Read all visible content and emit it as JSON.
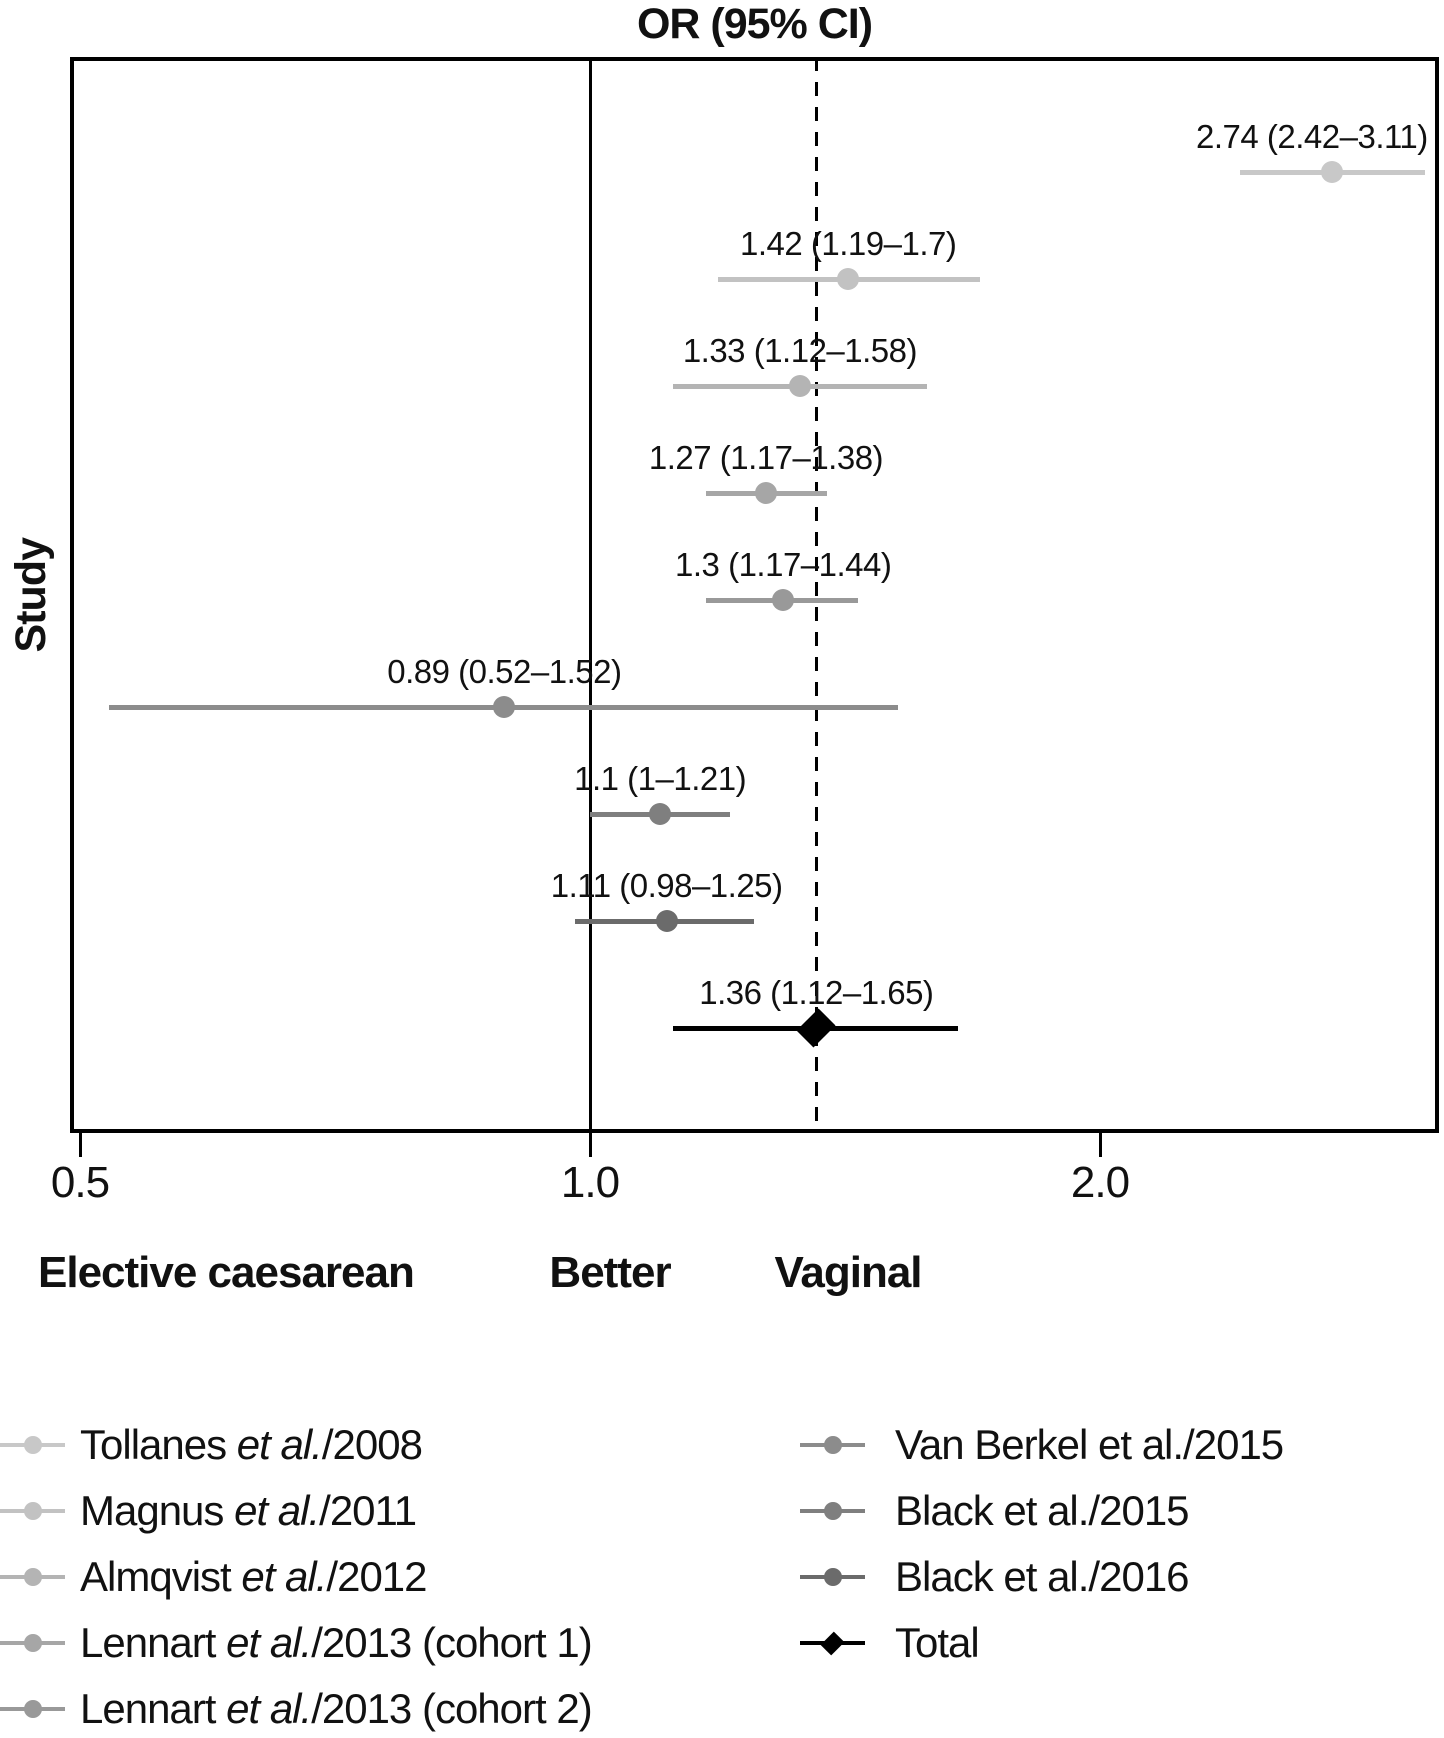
{
  "title": "OR (95% CI)",
  "ylabel": "Study",
  "axis_caption": {
    "left": "Elective caesarean",
    "center": "Better",
    "right": "Vaginal"
  },
  "chart_data": {
    "type": "forest-plot (scatter with CI error bars)",
    "x_scale": "log",
    "xlim": [
      0.49,
      3.2
    ],
    "x_ticks": [
      {
        "value": 0.5,
        "label": "0.5"
      },
      {
        "value": 1.0,
        "label": "1.0"
      },
      {
        "value": 2.0,
        "label": "2.0"
      }
    ],
    "solid_reference_value": 1.0,
    "dashed_reference_value": 1.36,
    "studies": [
      {
        "name": "Tollanes et al./2008",
        "or": 2.74,
        "ci_low": 2.42,
        "ci_high": 3.11,
        "label": "2.74 (2.42–3.11)",
        "color": "#c8c8c8",
        "marker": "circle"
      },
      {
        "name": "Magnus et al./2011",
        "or": 1.42,
        "ci_low": 1.19,
        "ci_high": 1.7,
        "label": "1.42 (1.19–1.7)",
        "color": "#c2c2c2",
        "marker": "circle"
      },
      {
        "name": "Almqvist et al./2012",
        "or": 1.33,
        "ci_low": 1.12,
        "ci_high": 1.58,
        "label": "1.33 (1.12–1.58)",
        "color": "#b4b4b4",
        "marker": "circle"
      },
      {
        "name": "Lennart et al./2013 (cohort 1)",
        "or": 1.27,
        "ci_low": 1.17,
        "ci_high": 1.38,
        "label": "1.27 (1.17–1.38)",
        "color": "#a6a6a6",
        "marker": "circle"
      },
      {
        "name": "Lennart et al./2013 (cohort 2)",
        "or": 1.3,
        "ci_low": 1.17,
        "ci_high": 1.44,
        "label": "1.3 (1.17–1.44)",
        "color": "#999999",
        "marker": "circle"
      },
      {
        "name": "Van Berkel et al./2015",
        "or": 0.89,
        "ci_low": 0.52,
        "ci_high": 1.52,
        "label": "0.89 (0.52–1.52)",
        "color": "#8c8c8c",
        "marker": "circle"
      },
      {
        "name": "Black et al./2015",
        "or": 1.1,
        "ci_low": 1.0,
        "ci_high": 1.21,
        "label": "1.1 (1–1.21)",
        "color": "#7f7f7f",
        "marker": "circle"
      },
      {
        "name": "Black et al./2016",
        "or": 1.11,
        "ci_low": 0.98,
        "ci_high": 1.25,
        "label": "1.11 (0.98–1.25)",
        "color": "#6b6b6b",
        "marker": "circle"
      },
      {
        "name": "Total",
        "or": 1.36,
        "ci_low": 1.12,
        "ci_high": 1.65,
        "label": "1.36 (1.12–1.65)",
        "color": "#000000",
        "marker": "diamond"
      }
    ]
  },
  "legend": {
    "left": [
      {
        "pre": "Tollanes ",
        "etal": "et al.",
        "post": "/2008",
        "color": "#c8c8c8",
        "marker": "circle"
      },
      {
        "pre": "Magnus ",
        "etal": "et al.",
        "post": "/2011",
        "color": "#c2c2c2",
        "marker": "circle"
      },
      {
        "pre": "Almqvist ",
        "etal": "et al.",
        "post": "/2012",
        "color": "#b4b4b4",
        "marker": "circle"
      },
      {
        "pre": "Lennart ",
        "etal": "et al.",
        "post": "/2013 (cohort 1)",
        "color": "#a6a6a6",
        "marker": "circle"
      },
      {
        "pre": "Lennart ",
        "etal": "et al.",
        "post": "/2013 (cohort 2)",
        "color": "#999999",
        "marker": "circle"
      }
    ],
    "right": [
      {
        "pre": "Van Berkel et al./2015",
        "etal": "",
        "post": "",
        "color": "#8c8c8c",
        "marker": "circle"
      },
      {
        "pre": "Black et al./2015",
        "etal": "",
        "post": "",
        "color": "#7f7f7f",
        "marker": "circle"
      },
      {
        "pre": "Black et al./2016",
        "etal": "",
        "post": "",
        "color": "#6b6b6b",
        "marker": "circle"
      },
      {
        "pre": "Total",
        "etal": "",
        "post": "",
        "color": "#000000",
        "marker": "diamond"
      }
    ]
  }
}
